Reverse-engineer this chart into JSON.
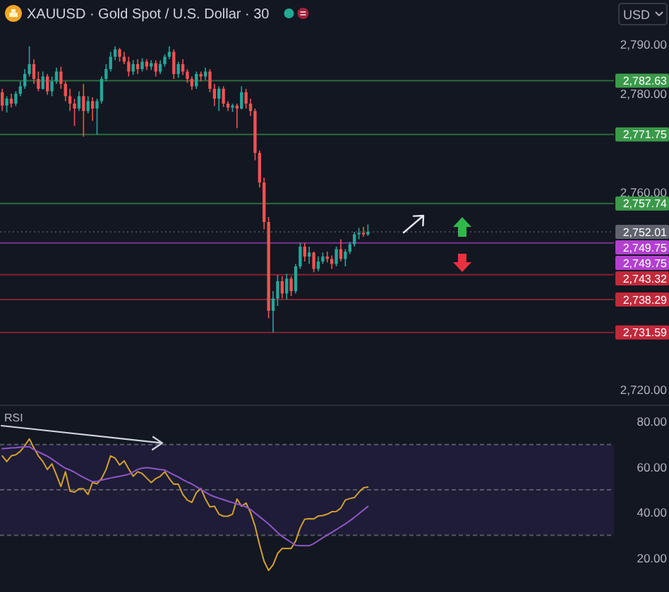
{
  "chart_data": [
    {
      "type": "candlestick",
      "title": "XAUUSD · Gold Spot / U.S. Dollar · 30",
      "ylabel": "USD",
      "tick_labels": "y",
      "categories": [
        null,
        null,
        null,
        null,
        null,
        null,
        null,
        null,
        null,
        null,
        null,
        null,
        null,
        null,
        null,
        null,
        null,
        null,
        null,
        null,
        null,
        null,
        null,
        null,
        null,
        null,
        null,
        null,
        null,
        null,
        null,
        null,
        null,
        null,
        null,
        null,
        null,
        null,
        null,
        null,
        null,
        null,
        null,
        null,
        null,
        null,
        null,
        null,
        null,
        null,
        null,
        null,
        null,
        null,
        null,
        null,
        null,
        null,
        null,
        null,
        null,
        null,
        null,
        null,
        null,
        null,
        null,
        null,
        null,
        null,
        null,
        null,
        null,
        null,
        null,
        null,
        null,
        null,
        null,
        null,
        null,
        null,
        null,
        null,
        null,
        null,
        null,
        null,
        null,
        null,
        null,
        null,
        null,
        null,
        null,
        null,
        null,
        null,
        null,
        null,
        null,
        null,
        null,
        null,
        null,
        null,
        null,
        null,
        null,
        null,
        null,
        null,
        null,
        null,
        null,
        null,
        null,
        null,
        null,
        null,
        null,
        null,
        null,
        null,
        null,
        null,
        null,
        null,
        null,
        null,
        null,
        null,
        null,
        null,
        null,
        null
      ],
      "ohlc": [
        [
          2780.3,
          2781,
          2776.5,
          2777.6
        ],
        [
          2777.6,
          2779.5,
          2776.2,
          2779
        ],
        [
          2779,
          2780,
          2777.2,
          2778
        ],
        [
          2778,
          2780.5,
          2777.5,
          2780
        ],
        [
          2780,
          2782.5,
          2779.5,
          2781.5
        ],
        [
          2781.5,
          2785,
          2781,
          2784
        ],
        [
          2784,
          2789.6,
          2783.5,
          2786
        ],
        [
          2786,
          2787,
          2782,
          2783
        ],
        [
          2783,
          2784.5,
          2780.5,
          2781
        ],
        [
          2781,
          2784.5,
          2780.8,
          2783.5
        ],
        [
          2783.5,
          2784,
          2779.8,
          2780.5
        ],
        [
          2780.5,
          2783.5,
          2779.5,
          2782.5
        ],
        [
          2782.5,
          2785.3,
          2782,
          2784.5
        ],
        [
          2784.5,
          2785.5,
          2781,
          2782
        ],
        [
          2782,
          2782.5,
          2778.5,
          2779.5
        ],
        [
          2779.5,
          2781,
          2776.5,
          2778
        ],
        [
          2778,
          2779,
          2773.5,
          2777
        ],
        [
          2777,
          2780.5,
          2776.5,
          2779.5
        ],
        [
          2779.5,
          2782,
          2771.3,
          2776.5
        ],
        [
          2776.5,
          2779.5,
          2776,
          2778.5
        ],
        [
          2778.5,
          2779.3,
          2774.5,
          2777
        ],
        [
          2777,
          2779,
          2771.7,
          2778.5
        ],
        [
          2778.5,
          2783.5,
          2778,
          2783
        ],
        [
          2783,
          2786,
          2782.5,
          2785
        ],
        [
          2785,
          2788.5,
          2784.5,
          2787.5
        ],
        [
          2787.5,
          2789.6,
          2786.8,
          2789
        ],
        [
          2789,
          2789.3,
          2786.5,
          2787.5
        ],
        [
          2787.5,
          2788.5,
          2786,
          2786.5
        ],
        [
          2786.5,
          2787.5,
          2783.5,
          2784.5
        ],
        [
          2784.5,
          2786.8,
          2783.8,
          2786
        ],
        [
          2786,
          2787,
          2784,
          2785
        ],
        [
          2785,
          2787.2,
          2784.5,
          2786.5
        ],
        [
          2786.5,
          2787,
          2784.8,
          2785.5
        ],
        [
          2785.5,
          2786.8,
          2784.8,
          2786.2
        ],
        [
          2786.2,
          2786.8,
          2783.5,
          2784.5
        ],
        [
          2784.5,
          2786.8,
          2784,
          2786
        ],
        [
          2786,
          2788,
          2785.5,
          2787.5
        ],
        [
          2787.5,
          2789.6,
          2787,
          2788.5
        ],
        [
          2788.5,
          2789,
          2783,
          2784
        ],
        [
          2784,
          2786.5,
          2783.2,
          2786
        ],
        [
          2786,
          2787,
          2783.8,
          2784.5
        ],
        [
          2784.5,
          2785,
          2782.2,
          2783
        ],
        [
          2783,
          2783.5,
          2780.8,
          2781.5
        ],
        [
          2781.5,
          2784.5,
          2781,
          2784
        ],
        [
          2784,
          2784.5,
          2782.5,
          2783.5
        ],
        [
          2783.5,
          2785.3,
          2782.8,
          2784.5
        ],
        [
          2784.5,
          2785,
          2780.3,
          2781
        ],
        [
          2781,
          2782,
          2777.5,
          2779
        ],
        [
          2779,
          2781.5,
          2776.5,
          2781
        ],
        [
          2781,
          2781.5,
          2777.3,
          2778
        ],
        [
          2778,
          2778.5,
          2776.5,
          2777.2
        ],
        [
          2777.2,
          2778,
          2776.3,
          2777.6
        ],
        [
          2777.6,
          2778,
          2773,
          2777
        ],
        [
          2777,
          2781.5,
          2776.8,
          2780.3
        ],
        [
          2780.3,
          2781,
          2777,
          2778
        ],
        [
          2778,
          2779,
          2775.5,
          2776.5
        ],
        [
          2776.5,
          2777,
          2766.5,
          2768
        ],
        [
          2768,
          2768.5,
          2761,
          2762
        ],
        [
          2762,
          2763,
          2752.5,
          2754
        ],
        [
          2754,
          2755,
          2734.5,
          2736
        ],
        [
          2736,
          2740,
          2731.59,
          2738.5
        ],
        [
          2738.5,
          2743.3,
          2737,
          2742
        ],
        [
          2742,
          2743,
          2738.5,
          2739.5
        ],
        [
          2739.5,
          2743.5,
          2738.3,
          2742.5
        ],
        [
          2742.5,
          2743,
          2739,
          2740
        ],
        [
          2740,
          2745.5,
          2739.5,
          2745
        ],
        [
          2745,
          2749.8,
          2744.5,
          2749
        ],
        [
          2749,
          2749.7,
          2746,
          2747
        ],
        [
          2747,
          2749,
          2745.5,
          2747.8
        ],
        [
          2747.8,
          2748,
          2743.8,
          2744.5
        ],
        [
          2744.5,
          2747,
          2744,
          2746
        ],
        [
          2746,
          2747.8,
          2745.5,
          2747
        ],
        [
          2747,
          2748,
          2745.8,
          2746.5
        ],
        [
          2746.5,
          2747.2,
          2744.5,
          2745.5
        ],
        [
          2745.5,
          2749,
          2745,
          2748.5
        ],
        [
          2748.5,
          2750.5,
          2746,
          2746.5
        ],
        [
          2746.5,
          2748.5,
          2745,
          2748
        ],
        [
          2748,
          2750,
          2747.5,
          2749.5
        ],
        [
          2749.5,
          2752,
          2749,
          2751.5
        ],
        [
          2751.5,
          2752.8,
          2750.5,
          2751.8
        ],
        [
          2751.8,
          2753,
          2751,
          2751.5
        ],
        [
          2751.5,
          2753.5,
          2751.2,
          2752.01
        ],
        null,
        null,
        null,
        null,
        null,
        null,
        null,
        null,
        null,
        null,
        null,
        null,
        null,
        null,
        null,
        null,
        null,
        null,
        null,
        null,
        null,
        null,
        null,
        null,
        null,
        null,
        null,
        null,
        null,
        null,
        null,
        null,
        null,
        null,
        null,
        null,
        null,
        null,
        null,
        null,
        null,
        null,
        null,
        null,
        null,
        null,
        null,
        null,
        null,
        null,
        null,
        null,
        null,
        null
      ],
      "ylim": [
        2717,
        2799
      ],
      "yticks": [
        {
          "value": 2720,
          "label": "2,720.00"
        },
        {
          "value": 2760,
          "label": "2,760.00"
        },
        {
          "value": 2780,
          "label": "2,780.00"
        },
        {
          "value": 2790,
          "label": "2,790.00"
        }
      ],
      "ref_lines": [
        {
          "axis": "y",
          "value": 2782.63,
          "label": "2,782.63",
          "color": "#3a9a49"
        },
        {
          "axis": "y",
          "value": 2771.75,
          "label": "2,771.75",
          "color": "#3a9a49"
        },
        {
          "axis": "y",
          "value": 2757.74,
          "label": "2,757.74",
          "color": "#3a9a49"
        },
        {
          "axis": "y",
          "value": 2752.01,
          "label": "2,752.01",
          "color": "#60636e",
          "line_style": "dotted"
        },
        {
          "axis": "y",
          "value": 2749.75,
          "label": "2,749.75",
          "color": "#b340d0"
        },
        {
          "axis": "y",
          "value": 2743.32,
          "label": "2,743.32",
          "color": "#c2293a"
        },
        {
          "axis": "y",
          "value": 2738.29,
          "label": "2,738.29",
          "color": "#c2293a"
        },
        {
          "axis": "y",
          "value": 2731.59,
          "label": "2,731.59",
          "color": "#c2293a"
        }
      ],
      "annotations": [
        "2,749.75"
      ]
    },
    {
      "type": "line",
      "title": "RSI",
      "tick_labels": "y",
      "categories": [
        null,
        null,
        null,
        null,
        null,
        null,
        null,
        null,
        null,
        null,
        null,
        null,
        null,
        null,
        null,
        null,
        null,
        null,
        null,
        null,
        null,
        null,
        null,
        null,
        null,
        null,
        null,
        null,
        null,
        null,
        null,
        null,
        null,
        null,
        null,
        null,
        null,
        null,
        null,
        null,
        null,
        null,
        null,
        null,
        null,
        null,
        null,
        null,
        null,
        null,
        null,
        null,
        null,
        null,
        null,
        null,
        null,
        null,
        null,
        null,
        null,
        null,
        null,
        null,
        null,
        null,
        null,
        null,
        null,
        null,
        null,
        null,
        null,
        null,
        null,
        null,
        null,
        null,
        null,
        null,
        null,
        null,
        null,
        null,
        null,
        null,
        null,
        null,
        null,
        null,
        null,
        null,
        null,
        null,
        null,
        null,
        null,
        null,
        null,
        null,
        null,
        null,
        null,
        null,
        null,
        null,
        null,
        null,
        null,
        null,
        null,
        null,
        null,
        null,
        null,
        null,
        null,
        null,
        null,
        null,
        null,
        null,
        null,
        null,
        null,
        null,
        null,
        null,
        null,
        null,
        null,
        null,
        null,
        null,
        null,
        null
      ],
      "series": [
        {
          "color": "#d4a12e",
          "values": [
            65,
            62.5,
            65,
            65.5,
            67,
            69.5,
            72.5,
            68.5,
            65,
            62.5,
            59,
            61.5,
            56.6,
            51.5,
            58,
            49.5,
            49,
            50.5,
            50.5,
            48,
            53.3,
            52.7,
            55,
            59,
            65,
            64,
            61,
            62.8,
            59.3,
            56,
            58,
            57.2,
            55.2,
            53.2,
            55,
            56,
            58,
            55,
            52.5,
            52.5,
            48,
            45.5,
            44.5,
            48.8,
            50.6,
            46,
            42.5,
            42.8,
            39.3,
            38.4,
            38.4,
            39.3,
            46,
            42.8,
            44.2,
            40,
            34,
            25.8,
            18.5,
            14.5,
            17,
            22,
            24.2,
            24.2,
            24.2,
            27.5,
            33.3,
            37.1,
            37.3,
            37.2,
            38.5,
            38.7,
            39.3,
            40.4,
            40.5,
            42,
            45.5,
            46.2,
            46.6,
            49,
            50.9,
            51.3,
            null,
            null,
            null,
            null,
            null,
            null,
            null,
            null,
            null,
            null,
            null,
            null,
            null,
            null,
            null,
            null,
            null,
            null,
            null,
            null,
            null,
            null,
            null,
            null,
            null,
            null,
            null,
            null,
            null,
            null,
            null,
            null,
            null,
            null,
            null,
            null,
            null,
            null,
            null,
            null,
            null,
            null,
            null,
            null,
            null,
            null,
            null,
            null,
            null,
            null,
            null,
            null,
            null,
            null
          ]
        },
        {
          "color": "#8e57c8",
          "values": [
            68.1,
            68.3,
            68.5,
            68.6,
            68.8,
            69,
            69,
            67.8,
            66.8,
            65.8,
            64.8,
            63.6,
            62.2,
            60.8,
            59.5,
            58.8,
            57.8,
            56.6,
            55.5,
            54.5,
            53.6,
            53.8,
            54.3,
            54.8,
            55.2,
            55.6,
            56,
            56.4,
            56.9,
            57.9,
            59,
            59.6,
            59.8,
            59.6,
            59.3,
            59,
            58.7,
            57.7,
            56.7,
            55.7,
            54.5,
            53.5,
            52.6,
            51.4,
            50.2,
            49,
            47.8,
            47,
            46.3,
            45.7,
            45,
            44.4,
            43.8,
            43.2,
            42.5,
            41.4,
            39.8,
            38.2,
            36.6,
            35,
            33.1,
            31.2,
            29.5,
            28.2,
            26.9,
            25.6,
            25.4,
            25.4,
            25.4,
            26.3,
            27.6,
            28.9,
            30.1,
            31.3,
            32.5,
            33.8,
            35,
            36.4,
            37.9,
            39.5,
            41.1,
            42.7,
            null,
            null,
            null,
            null,
            null,
            null,
            null,
            null,
            null,
            null,
            null,
            null,
            null,
            null,
            null,
            null,
            null,
            null,
            null,
            null,
            null,
            null,
            null,
            null,
            null,
            null,
            null,
            null,
            null,
            null,
            null,
            null,
            null,
            null,
            null,
            null,
            null,
            null,
            null,
            null,
            null,
            null,
            null,
            null,
            null,
            null,
            null,
            null,
            null,
            null,
            null,
            null,
            null,
            null
          ]
        }
      ],
      "ylim": [
        5,
        87
      ],
      "yticks": [
        {
          "value": 20,
          "label": "20.00"
        },
        {
          "value": 40,
          "label": "40.00"
        },
        {
          "value": 60,
          "label": "60.00"
        },
        {
          "value": 80,
          "label": "80.00"
        }
      ],
      "bands": [
        {
          "axis": "y",
          "from": 30,
          "to": 70,
          "color": "#1e1c37"
        }
      ],
      "ref_lines": [
        {
          "axis": "y",
          "value": 70,
          "color": "#787b86",
          "line_style": "dashed"
        },
        {
          "axis": "y",
          "value": 50,
          "color": "#787b86",
          "line_style": "dashed"
        },
        {
          "axis": "y",
          "value": 30,
          "color": "#787b86",
          "line_style": "dashed"
        }
      ]
    }
  ]
}
